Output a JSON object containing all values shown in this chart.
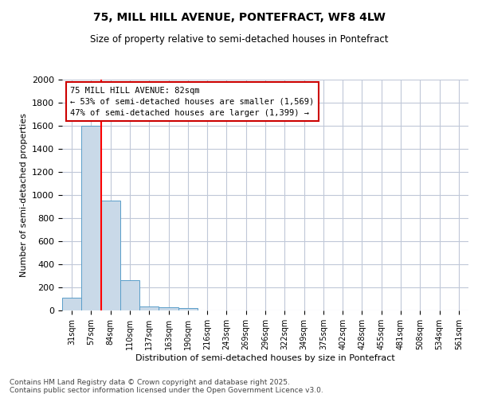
{
  "title1": "75, MILL HILL AVENUE, PONTEFRACT, WF8 4LW",
  "title2": "Size of property relative to semi-detached houses in Pontefract",
  "xlabel": "Distribution of semi-detached houses by size in Pontefract",
  "ylabel": "Number of semi-detached properties",
  "categories": [
    "31sqm",
    "57sqm",
    "84sqm",
    "110sqm",
    "137sqm",
    "163sqm",
    "190sqm",
    "216sqm",
    "243sqm",
    "269sqm",
    "296sqm",
    "322sqm",
    "349sqm",
    "375sqm",
    "402sqm",
    "428sqm",
    "455sqm",
    "481sqm",
    "508sqm",
    "534sqm",
    "561sqm"
  ],
  "values": [
    110,
    1600,
    950,
    260,
    35,
    25,
    20,
    0,
    0,
    0,
    0,
    0,
    0,
    0,
    0,
    0,
    0,
    0,
    0,
    0,
    0
  ],
  "bar_color": "#c9d9e8",
  "bar_edge_color": "#5a9ec9",
  "red_line_index": 2,
  "annotation_text1": "75 MILL HILL AVENUE: 82sqm",
  "annotation_text2": "← 53% of semi-detached houses are smaller (1,569)",
  "annotation_text3": "47% of semi-detached houses are larger (1,399) →",
  "annotation_box_color": "#ffffff",
  "annotation_box_edge": "#cc0000",
  "footer1": "Contains HM Land Registry data © Crown copyright and database right 2025.",
  "footer2": "Contains public sector information licensed under the Open Government Licence v3.0.",
  "ylim": [
    0,
    2000
  ],
  "yticks": [
    0,
    200,
    400,
    600,
    800,
    1000,
    1200,
    1400,
    1600,
    1800,
    2000
  ],
  "background_color": "#ffffff",
  "grid_color": "#c0c8d8"
}
